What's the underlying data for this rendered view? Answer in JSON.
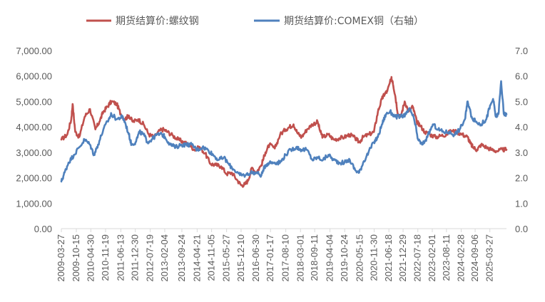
{
  "chart_data": {
    "type": "line",
    "title": "",
    "xlabel": "",
    "ylabel": "",
    "ylim_left": [
      0,
      7000
    ],
    "ylim_right": [
      0,
      7.0
    ],
    "left_ticks": [
      "0.00",
      "1,000.00",
      "2,000.00",
      "3,000.00",
      "4,000.00",
      "5,000.00",
      "6,000.00",
      "7,000.00"
    ],
    "right_ticks": [
      "0.0",
      "1.0",
      "2.0",
      "3.0",
      "4.0",
      "5.0",
      "6.0",
      "7.0"
    ],
    "left_tick_values": [
      0,
      1000,
      2000,
      3000,
      4000,
      5000,
      6000,
      7000
    ],
    "right_tick_values": [
      0,
      1,
      2,
      3,
      4,
      5,
      6,
      7
    ],
    "x_start": 2009.23,
    "x_end": 2025.85,
    "x_tick_labels": [
      "2009-03-27",
      "2009-10-15",
      "2010-04-30",
      "2010-11-19",
      "2011-06-13",
      "2011-12-30",
      "2012-07-19",
      "2013-02-04",
      "2013-09-24",
      "2014-04-21",
      "2014-11-05",
      "2015-05-27",
      "2015-12-10",
      "2016-06-30",
      "2017-01-17",
      "2017-08-10",
      "2018-03-01",
      "2018-09-11",
      "2019-04-04",
      "2019-10-24",
      "2020-05-15",
      "2020-11-30",
      "2021-06-18",
      "2021-12-29",
      "2022-07-18",
      "2023-02-01",
      "2023-08-11",
      "2024-02-28",
      "2024-09-06",
      "2025-03-27"
    ],
    "x_tick_values": [
      2009.23,
      2009.79,
      2010.33,
      2010.88,
      2011.45,
      2011.99,
      2012.55,
      2013.09,
      2013.73,
      2014.3,
      2014.84,
      2015.4,
      2015.94,
      2016.5,
      2017.04,
      2017.61,
      2018.16,
      2018.69,
      2019.26,
      2019.81,
      2020.37,
      2020.91,
      2021.46,
      2021.99,
      2022.54,
      2023.08,
      2023.61,
      2024.16,
      2024.68,
      2025.23
    ],
    "legend_position": "top",
    "series": [
      {
        "name": "期货结算价:螺纹钢",
        "axis": "left",
        "color": "#c0504d",
        "x": [
          2009.23,
          2009.45,
          2009.6,
          2009.65,
          2009.75,
          2009.9,
          2010.1,
          2010.3,
          2010.5,
          2010.65,
          2010.8,
          2010.95,
          2011.1,
          2011.3,
          2011.45,
          2011.6,
          2011.75,
          2011.9,
          2012.1,
          2012.3,
          2012.5,
          2012.7,
          2012.9,
          2013.05,
          2013.2,
          2013.4,
          2013.6,
          2013.8,
          2014.0,
          2014.2,
          2014.4,
          2014.6,
          2014.8,
          2015.0,
          2015.2,
          2015.4,
          2015.6,
          2015.8,
          2015.95,
          2016.1,
          2016.2,
          2016.35,
          2016.5,
          2016.7,
          2016.85,
          2017.0,
          2017.2,
          2017.4,
          2017.6,
          2017.75,
          2017.9,
          2018.05,
          2018.2,
          2018.4,
          2018.6,
          2018.8,
          2018.9,
          2019.0,
          2019.2,
          2019.4,
          2019.6,
          2019.8,
          2020.0,
          2020.2,
          2020.35,
          2020.5,
          2020.7,
          2020.9,
          2021.05,
          2021.2,
          2021.3,
          2021.4,
          2021.55,
          2021.6,
          2021.7,
          2021.8,
          2021.9,
          2022.05,
          2022.2,
          2022.35,
          2022.5,
          2022.6,
          2022.8,
          2023.0,
          2023.2,
          2023.4,
          2023.6,
          2023.8,
          2024.0,
          2024.2,
          2024.4,
          2024.5,
          2024.6,
          2024.75,
          2024.9,
          2025.1,
          2025.3,
          2025.5,
          2025.7,
          2025.85
        ],
        "values": [
          3500,
          3700,
          4300,
          4900,
          3800,
          3600,
          4400,
          4700,
          3900,
          4200,
          4600,
          4800,
          5000,
          4900,
          4500,
          4300,
          4450,
          4200,
          4300,
          4100,
          3700,
          3600,
          3850,
          3900,
          3800,
          3650,
          3500,
          3400,
          3300,
          3100,
          3200,
          2950,
          2550,
          2500,
          2450,
          2150,
          2200,
          1900,
          1700,
          1750,
          1900,
          2400,
          2200,
          2500,
          3000,
          3300,
          3150,
          3700,
          3900,
          4000,
          4100,
          3750,
          3600,
          3900,
          4100,
          4200,
          3800,
          3600,
          3700,
          3500,
          3550,
          3600,
          3700,
          3550,
          3400,
          3600,
          3700,
          3800,
          4600,
          5100,
          5300,
          5400,
          5900,
          5800,
          5200,
          4500,
          4400,
          5000,
          4600,
          4800,
          4200,
          4100,
          3800,
          3700,
          3600,
          3650,
          3700,
          3850,
          3800,
          3700,
          3600,
          3350,
          3200,
          3100,
          3300,
          3200,
          3100,
          3050,
          3100,
          3100
        ]
      },
      {
        "name": "期货结算价:COMEX铜（右轴）",
        "axis": "right",
        "color": "#4f81bd",
        "x": [
          2009.23,
          2009.35,
          2009.5,
          2009.7,
          2009.9,
          2010.1,
          2010.3,
          2010.45,
          2010.6,
          2010.8,
          2011.0,
          2011.1,
          2011.3,
          2011.5,
          2011.6,
          2011.75,
          2011.85,
          2012.0,
          2012.15,
          2012.3,
          2012.45,
          2012.6,
          2012.8,
          2013.0,
          2013.1,
          2013.3,
          2013.5,
          2013.7,
          2013.9,
          2014.1,
          2014.3,
          2014.5,
          2014.7,
          2014.9,
          2015.1,
          2015.3,
          2015.5,
          2015.7,
          2015.9,
          2016.1,
          2016.3,
          2016.5,
          2016.7,
          2016.85,
          2017.0,
          2017.2,
          2017.4,
          2017.6,
          2017.8,
          2018.0,
          2018.2,
          2018.4,
          2018.6,
          2018.8,
          2019.0,
          2019.2,
          2019.4,
          2019.6,
          2019.8,
          2020.0,
          2020.2,
          2020.35,
          2020.5,
          2020.7,
          2020.9,
          2021.05,
          2021.2,
          2021.35,
          2021.5,
          2021.7,
          2021.9,
          2022.1,
          2022.25,
          2022.4,
          2022.55,
          2022.7,
          2022.9,
          2023.1,
          2023.3,
          2023.5,
          2023.7,
          2023.9,
          2024.1,
          2024.3,
          2024.4,
          2024.55,
          2024.7,
          2024.9,
          2025.1,
          2025.2,
          2025.35,
          2025.45,
          2025.55,
          2025.65,
          2025.75,
          2025.85
        ],
        "values": [
          1.85,
          2.2,
          2.6,
          2.9,
          3.2,
          3.5,
          3.3,
          2.9,
          3.3,
          3.9,
          4.3,
          4.5,
          4.3,
          4.4,
          4.2,
          3.7,
          3.3,
          3.4,
          3.8,
          3.7,
          3.4,
          3.5,
          3.7,
          3.7,
          3.6,
          3.3,
          3.2,
          3.3,
          3.3,
          3.3,
          3.1,
          3.2,
          3.1,
          2.9,
          2.7,
          2.8,
          2.5,
          2.3,
          2.1,
          2.1,
          2.2,
          2.2,
          2.1,
          2.5,
          2.6,
          2.6,
          2.6,
          2.9,
          3.1,
          3.2,
          3.1,
          3.1,
          2.7,
          2.8,
          2.7,
          2.9,
          2.7,
          2.6,
          2.6,
          2.7,
          2.3,
          2.2,
          2.6,
          3.0,
          3.4,
          3.6,
          4.1,
          4.5,
          4.6,
          4.4,
          4.4,
          4.5,
          4.7,
          4.3,
          3.5,
          3.3,
          3.6,
          4.1,
          3.9,
          3.8,
          3.8,
          3.7,
          3.9,
          4.3,
          5.0,
          4.4,
          4.2,
          4.1,
          4.3,
          4.7,
          5.1,
          4.4,
          4.5,
          5.8,
          4.5,
          4.5
        ]
      }
    ]
  },
  "colors": {
    "axis": "#d9d9d9",
    "tick_text": "#595959",
    "background": "#ffffff"
  }
}
